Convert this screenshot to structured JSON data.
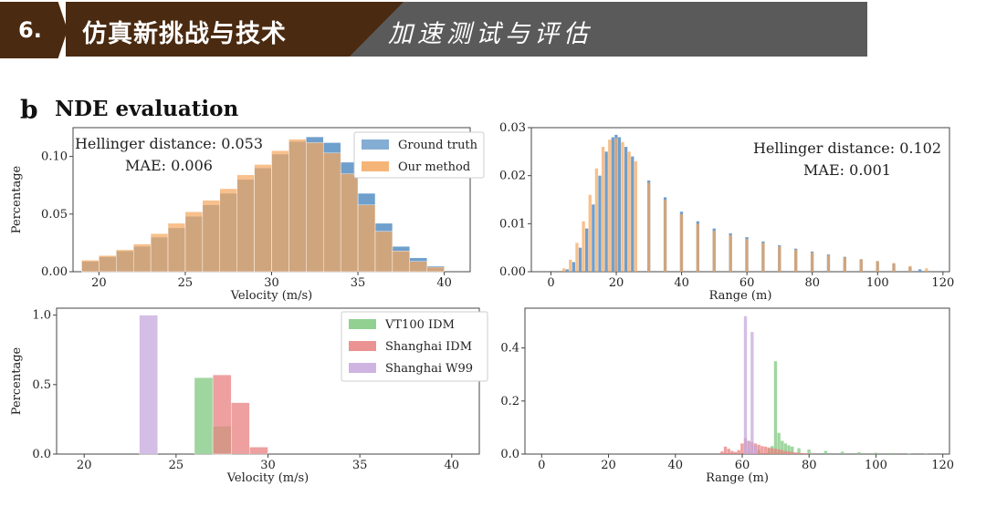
{
  "header": {
    "number": "6.",
    "title": "仿真新挑战与技术",
    "subtitle": "加速测试与评估"
  },
  "panel": {
    "letter": "b",
    "title": "NDE evaluation"
  },
  "colors": {
    "ground_truth": "#6f9fcc",
    "our_method": "#f4a860",
    "overlap": "#b08a5e",
    "vt100": "#7fc87f",
    "shanghai_idm": "#e88080",
    "shanghai_w99": "#c6a8dc",
    "overlap_low": "#b86a4a"
  },
  "chart_data": [
    {
      "id": "velocity_nde",
      "type": "bar",
      "xlabel": "Velocity (m/s)",
      "ylabel": "Percentage",
      "xlim": [
        18.5,
        41.5
      ],
      "ylim": [
        0,
        0.125
      ],
      "xticks": [
        20,
        25,
        30,
        35,
        40
      ],
      "yticks": [
        0.0,
        0.05,
        0.1
      ],
      "ytick_labels": [
        "0.00",
        "0.05",
        "0.10"
      ],
      "bin_width": 1,
      "series": [
        {
          "name": "Ground truth",
          "x": [
            19.5,
            20.5,
            21.5,
            22.5,
            23.5,
            24.5,
            25.5,
            26.5,
            27.5,
            28.5,
            29.5,
            30.5,
            31.5,
            32.5,
            33.5,
            34.5,
            35.5,
            36.5,
            37.5,
            38.5,
            39.5
          ],
          "values": [
            0.009,
            0.013,
            0.018,
            0.022,
            0.03,
            0.038,
            0.048,
            0.058,
            0.068,
            0.08,
            0.09,
            0.102,
            0.113,
            0.117,
            0.112,
            0.095,
            0.068,
            0.042,
            0.022,
            0.012,
            0.005
          ]
        },
        {
          "name": "Our method",
          "x": [
            19.5,
            20.5,
            21.5,
            22.5,
            23.5,
            24.5,
            25.5,
            26.5,
            27.5,
            28.5,
            29.5,
            30.5,
            31.5,
            32.5,
            33.5,
            34.5,
            35.5,
            36.5,
            37.5,
            38.5,
            39.5
          ],
          "values": [
            0.01,
            0.014,
            0.019,
            0.024,
            0.033,
            0.042,
            0.052,
            0.062,
            0.072,
            0.084,
            0.093,
            0.105,
            0.115,
            0.112,
            0.103,
            0.085,
            0.058,
            0.035,
            0.018,
            0.009,
            0.004
          ]
        }
      ],
      "annotations": [
        "Hellinger distance: 0.053",
        "MAE: 0.006"
      ],
      "legend": "top-right"
    },
    {
      "id": "range_nde",
      "type": "bar",
      "xlabel": "Range (m)",
      "ylabel": "",
      "xlim": [
        -6,
        122
      ],
      "ylim": [
        0,
        0.03
      ],
      "xticks": [
        0,
        20,
        40,
        60,
        80,
        100,
        120
      ],
      "yticks": [
        0.0,
        0.01,
        0.02,
        0.03
      ],
      "ytick_labels": [
        "0.00",
        "0.01",
        "0.02",
        "0.03"
      ],
      "bin_width": 1,
      "series": [
        {
          "name": "Ground truth",
          "x": [
            5,
            7,
            9,
            11,
            13,
            15,
            17,
            19,
            20,
            21,
            23,
            25,
            30,
            35,
            40,
            45,
            50,
            55,
            60,
            65,
            70,
            75,
            80,
            85,
            90,
            95,
            100,
            105,
            110,
            113
          ],
          "values": [
            0.0005,
            0.002,
            0.005,
            0.009,
            0.014,
            0.02,
            0.025,
            0.028,
            0.0285,
            0.028,
            0.026,
            0.024,
            0.019,
            0.0155,
            0.0125,
            0.0105,
            0.009,
            0.008,
            0.0072,
            0.0063,
            0.0055,
            0.0048,
            0.0042,
            0.0036,
            0.0031,
            0.0026,
            0.0022,
            0.0017,
            0.001,
            0.0005
          ]
        },
        {
          "name": "Our method",
          "x": [
            4,
            6,
            8,
            10,
            12,
            14,
            16,
            18,
            20,
            22,
            24,
            26,
            30,
            35,
            40,
            45,
            50,
            55,
            60,
            65,
            70,
            75,
            80,
            85,
            90,
            95,
            100,
            105,
            110,
            115
          ],
          "values": [
            0.0007,
            0.0025,
            0.006,
            0.0105,
            0.016,
            0.0215,
            0.026,
            0.0275,
            0.0278,
            0.027,
            0.025,
            0.023,
            0.0185,
            0.015,
            0.012,
            0.01,
            0.0085,
            0.0076,
            0.0068,
            0.006,
            0.0053,
            0.0046,
            0.004,
            0.0035,
            0.003,
            0.0026,
            0.0022,
            0.0018,
            0.0012,
            0.0007
          ]
        }
      ],
      "annotations": [
        "Hellinger distance: 0.102",
        "MAE: 0.001"
      ]
    },
    {
      "id": "velocity_other",
      "type": "bar",
      "xlabel": "Velocity (m/s)",
      "ylabel": "Percentage",
      "xlim": [
        18.5,
        41.5
      ],
      "ylim": [
        0,
        1.05
      ],
      "xticks": [
        20,
        25,
        30,
        35,
        40
      ],
      "yticks": [
        0.0,
        0.5,
        1.0
      ],
      "ytick_labels": [
        "0.0",
        "0.5",
        "1.0"
      ],
      "bin_width": 1,
      "series": [
        {
          "name": "VT100 IDM",
          "x": [
            26.5,
            27.5
          ],
          "values": [
            0.55,
            0.2
          ]
        },
        {
          "name": "Shanghai IDM",
          "x": [
            27.5,
            28.5,
            29.5
          ],
          "values": [
            0.57,
            0.37,
            0.05
          ]
        },
        {
          "name": "Shanghai W99",
          "x": [
            23.5
          ],
          "values": [
            1.0
          ]
        }
      ],
      "legend": "top-right"
    },
    {
      "id": "range_other",
      "type": "bar",
      "xlabel": "Range (m)",
      "ylabel": "",
      "xlim": [
        -5,
        122
      ],
      "ylim": [
        0,
        0.55
      ],
      "xticks": [
        0,
        20,
        40,
        60,
        80,
        100,
        120
      ],
      "yticks": [
        0.0,
        0.2,
        0.4
      ],
      "ytick_labels": [
        "0.0",
        "0.2",
        "0.4"
      ],
      "bin_width": 1,
      "series": [
        {
          "name": "VT100 IDM",
          "x": [
            62,
            65,
            68,
            69,
            70,
            71,
            72,
            73,
            74,
            75,
            77,
            80,
            85,
            90,
            95,
            100,
            105,
            110,
            115
          ],
          "values": [
            0.01,
            0.015,
            0.02,
            0.03,
            0.35,
            0.08,
            0.05,
            0.04,
            0.033,
            0.028,
            0.022,
            0.017,
            0.012,
            0.009,
            0.007,
            0.005,
            0.004,
            0.002,
            0.001
          ]
        },
        {
          "name": "Shanghai IDM",
          "x": [
            54,
            55,
            56,
            57,
            58,
            59,
            60,
            61,
            62,
            63,
            64,
            65,
            66,
            67,
            68,
            69,
            70,
            71,
            72,
            73,
            74,
            75,
            76,
            77,
            78,
            79,
            80
          ],
          "values": [
            0.01,
            0.028,
            0.02,
            0.012,
            0.008,
            0.015,
            0.04,
            0.06,
            0.05,
            0.045,
            0.04,
            0.035,
            0.03,
            0.028,
            0.025,
            0.022,
            0.02,
            0.018,
            0.015,
            0.012,
            0.01,
            0.008,
            0.006,
            0.005,
            0.004,
            0.003,
            0.002
          ]
        },
        {
          "name": "Shanghai W99",
          "x": [
            61,
            62,
            63,
            64
          ],
          "values": [
            0.52,
            0.05,
            0.46,
            0.03
          ]
        }
      ]
    }
  ]
}
